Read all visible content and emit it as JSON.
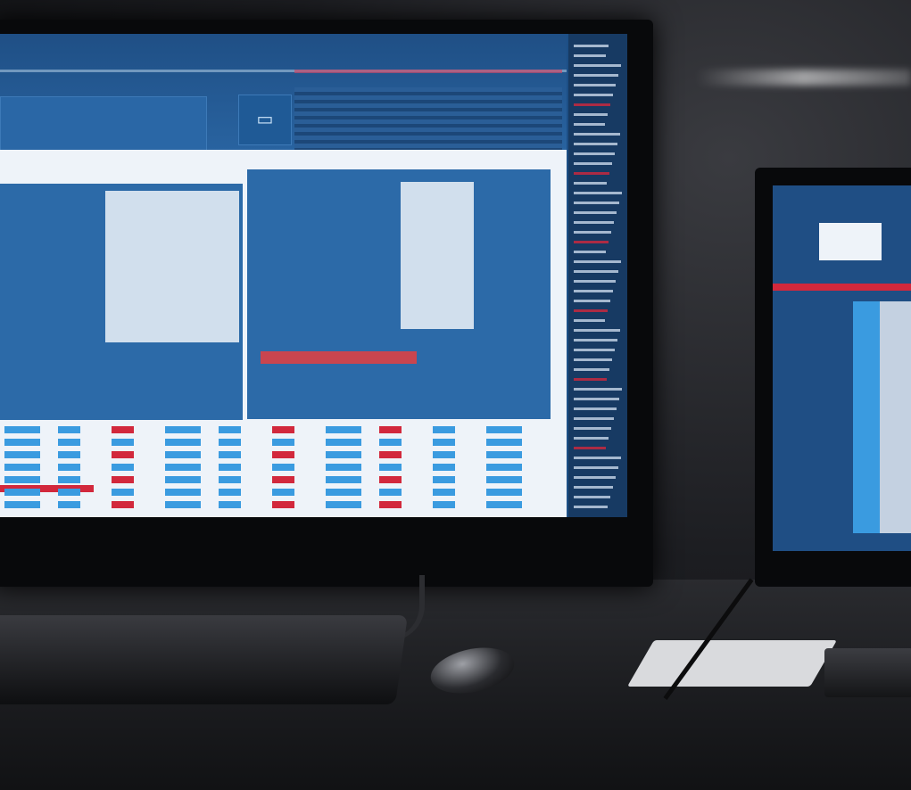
{
  "scene": {
    "colors": {
      "screen_blue": "#1d4f86",
      "panel_blue": "#2c6aa8",
      "accent_red": "#d2283c",
      "light_panel": "#eef3f9",
      "bar_blue": "#3a9be0"
    },
    "icons": [
      "monitor-icon",
      "keyboard-icon",
      "mouse-icon",
      "pen-icon",
      "notepad-icon"
    ]
  }
}
